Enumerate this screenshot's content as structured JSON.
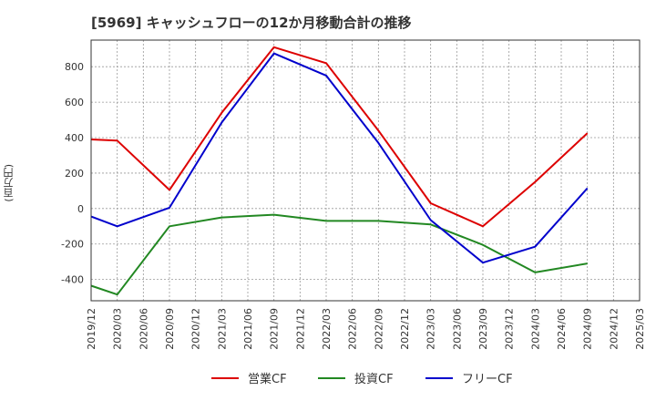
{
  "chart_data": {
    "type": "line",
    "title": "[5969]  キャッシュフローの12か月移動合計の推移",
    "ylabel": "(百万円)",
    "xlabel": "",
    "ylim": [
      -520,
      950
    ],
    "yticks": [
      -400,
      -200,
      0,
      200,
      400,
      600,
      800
    ],
    "categories": [
      "2019/12",
      "2020/03",
      "2020/06",
      "2020/09",
      "2020/12",
      "2021/03",
      "2021/06",
      "2021/09",
      "2021/12",
      "2022/03",
      "2022/06",
      "2022/09",
      "2022/12",
      "2023/03",
      "2023/06",
      "2023/09",
      "2023/12",
      "2024/03",
      "2024/06",
      "2024/09",
      "2024/12",
      "2025/03"
    ],
    "grid": true,
    "legend_position": "bottom",
    "series": [
      {
        "name": "営業CF",
        "color": "#dd0000",
        "values": [
          390,
          383,
          null,
          105,
          null,
          540,
          null,
          910,
          null,
          820,
          null,
          440,
          null,
          30,
          null,
          -100,
          null,
          150,
          null,
          425,
          null,
          null
        ]
      },
      {
        "name": "投資CF",
        "color": "#228822",
        "values": [
          -435,
          -485,
          null,
          -100,
          null,
          -50,
          null,
          -35,
          null,
          -70,
          null,
          -70,
          null,
          -90,
          null,
          -205,
          null,
          -360,
          null,
          -310,
          null,
          null
        ]
      },
      {
        "name": "フリーCF",
        "color": "#0000cc",
        "values": [
          -45,
          -100,
          null,
          5,
          null,
          485,
          null,
          875,
          null,
          750,
          null,
          370,
          null,
          -65,
          null,
          -305,
          null,
          -215,
          null,
          115,
          null,
          null
        ]
      }
    ]
  }
}
